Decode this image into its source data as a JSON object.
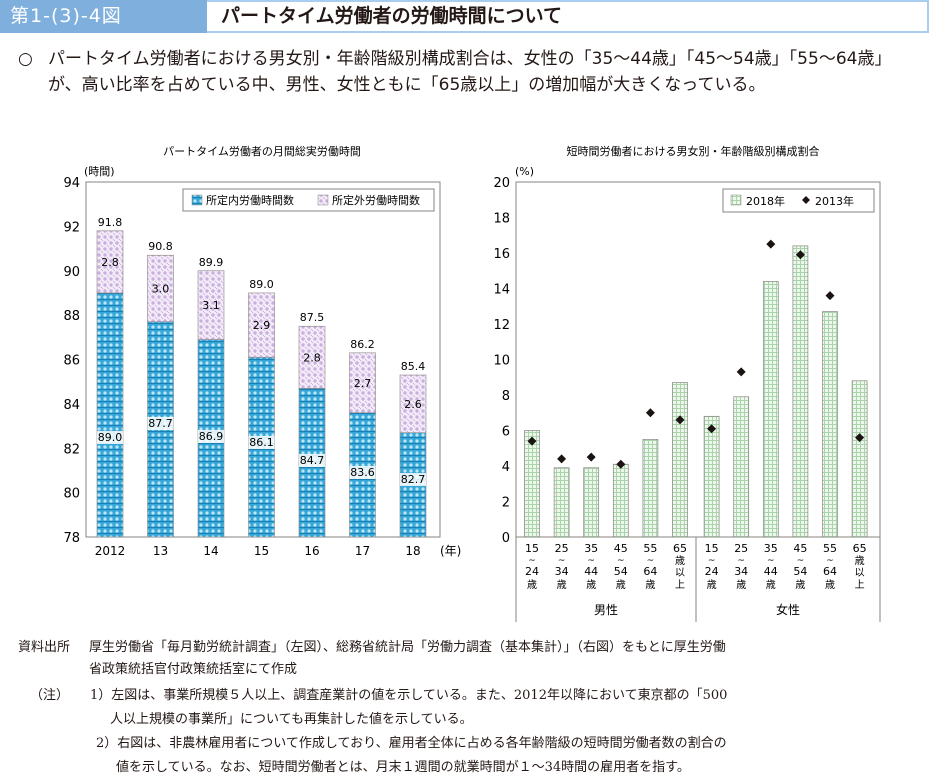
{
  "header": {
    "figure_number": "第1-(3)-4図",
    "title": "パートタイム労働者の労働時間について"
  },
  "summary": {
    "bullet": "○",
    "text": "パートタイム労働者における男女別・年齢階級別構成割合は、女性の「35～44歳」「45～54歳」「55～64歳」が、高い比率を占めている中、男性、女性ともに「65歳以上」の増加幅が大きくなっている。"
  },
  "chart_data": [
    {
      "type": "bar",
      "stacked": true,
      "title": "パートタイム労働者の月間総実労働時間",
      "ylabel": "(時間)",
      "xlabel": "(年)",
      "ylim": [
        78,
        94
      ],
      "yticks": [
        78,
        80,
        82,
        84,
        86,
        88,
        90,
        92,
        94
      ],
      "categories": [
        "2012",
        "13",
        "14",
        "15",
        "16",
        "17",
        "18"
      ],
      "series": [
        {
          "name": "所定内労働時間数",
          "values": [
            89.0,
            87.7,
            86.9,
            86.1,
            84.7,
            83.6,
            82.7
          ],
          "labels": [
            "89.0",
            "87.7",
            "86.9",
            "86.1",
            "84.7",
            "83.6",
            "82.7"
          ]
        },
        {
          "name": "所定外労働時間数",
          "values": [
            2.8,
            3.0,
            3.1,
            2.9,
            2.8,
            2.7,
            2.6
          ],
          "labels": [
            "2.8",
            "3.0",
            "3.1",
            "2.9",
            "2.8",
            "2.7",
            "2.6"
          ]
        }
      ],
      "totals": [
        "91.8",
        "90.8",
        "89.9",
        "89.0",
        "87.5",
        "86.2",
        "85.4"
      ],
      "legend": "top-right",
      "grid": false
    },
    {
      "type": "bar",
      "title": "短時間労働者における男女別・年齢階級別構成割合",
      "ylabel": "(%)",
      "ylim": [
        0,
        20
      ],
      "yticks": [
        0,
        2,
        4,
        6,
        8,
        10,
        12,
        14,
        16,
        18,
        20
      ],
      "groups": [
        "男性",
        "女性"
      ],
      "categories": [
        {
          "top": "15",
          "bottom": "24",
          "unit": "歳"
        },
        {
          "top": "25",
          "bottom": "34",
          "unit": "歳"
        },
        {
          "top": "35",
          "bottom": "44",
          "unit": "歳"
        },
        {
          "top": "45",
          "bottom": "54",
          "unit": "歳"
        },
        {
          "top": "55",
          "bottom": "64",
          "unit": "歳"
        },
        {
          "top": "65",
          "bottom": "以上",
          "unit": "歳"
        }
      ],
      "series": [
        {
          "name": "2018年",
          "kind": "bar",
          "values": [
            6.0,
            3.9,
            3.9,
            4.1,
            5.5,
            8.7,
            6.8,
            7.9,
            14.4,
            16.4,
            12.7,
            8.8
          ]
        },
        {
          "name": "2013年",
          "kind": "marker",
          "values": [
            5.4,
            4.4,
            4.5,
            4.1,
            7.0,
            6.6,
            6.1,
            9.3,
            16.5,
            15.9,
            13.6,
            5.6
          ]
        }
      ],
      "legend": "top-right",
      "grid": false
    }
  ],
  "colors": {
    "header_blue": "#7fb0dd",
    "header_border": "#a9cdee",
    "regular_hours": "#35a7d8",
    "overtime_hours": "#d9c8e6",
    "share_2018": "#cfe8cf",
    "marker_2013": "#1a1311",
    "axis": "#8a8582"
  },
  "notes": {
    "source_label": "資料出所",
    "source_line1": "厚生労働省「毎月勤労統計調査」（左図）、総務省統計局「労働力調査（基本集計）」（右図）をもとに厚生労働",
    "source_line2": "省政策統括官付政策統括室にて作成",
    "note_label": "（注）",
    "note1_line1": "1）左図は、事業所規模５人以上、調査産業計の値を示している。また、2012年以降において東京都の「500",
    "note1_line2": "人以上規模の事業所」についても再集計した値を示している。",
    "note2_line1": "2）右図は、非農林雇用者について作成しており、雇用者全体に占める各年齢階級の短時間労働者数の割合の",
    "note2_line2": "値を示している。なお、短時間労働者とは、月末１週間の就業時間が１～34時間の雇用者を指す。"
  }
}
